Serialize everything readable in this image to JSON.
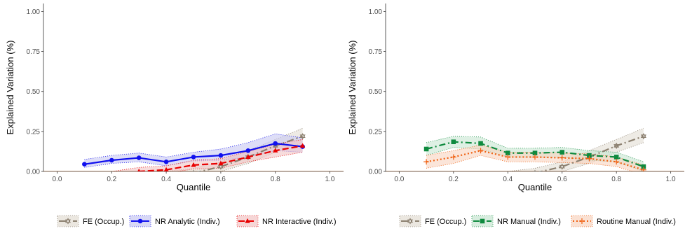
{
  "chart_data": [
    {
      "type": "line",
      "xlabel": "Quantile",
      "ylabel": "Explained Variation (%)",
      "xlim": [
        -0.05,
        1.05
      ],
      "ylim": [
        0,
        1.05
      ],
      "x_ticks": [
        "0.0",
        "0.2",
        "0.4",
        "0.6",
        "0.8",
        "1.0"
      ],
      "y_ticks": [
        "0.00",
        "0.25",
        "0.50",
        "0.75",
        "1.00"
      ],
      "grid": false,
      "reference_line": {
        "y": 0,
        "color": "#8B4513"
      },
      "legend_position": "bottom",
      "series": [
        {
          "name": "FE (Occup.)",
          "color": "#8c8070",
          "fill": "#e3ddd3",
          "dash": "10,4,2,4",
          "marker": "star",
          "x": [
            0.4,
            0.5,
            0.6,
            0.7,
            0.8,
            0.9
          ],
          "values": [
            -0.03,
            -0.01,
            0.03,
            0.09,
            0.16,
            0.22
          ],
          "lower": [
            -0.06,
            -0.04,
            0.0,
            0.05,
            0.12,
            0.18
          ],
          "upper": [
            0.0,
            0.02,
            0.06,
            0.13,
            0.2,
            0.27
          ]
        },
        {
          "name": "NR Analytic (Indiv.)",
          "color": "#1010ee",
          "fill": "#c8c8f2",
          "dash": "",
          "marker": "circle",
          "x": [
            0.1,
            0.2,
            0.3,
            0.4,
            0.5,
            0.6,
            0.7,
            0.8,
            0.9
          ],
          "values": [
            0.045,
            0.07,
            0.085,
            0.06,
            0.09,
            0.1,
            0.13,
            0.175,
            0.155
          ],
          "lower": [
            0.025,
            0.05,
            0.06,
            0.035,
            0.065,
            0.07,
            0.09,
            0.13,
            0.12
          ],
          "upper": [
            0.075,
            0.1,
            0.115,
            0.09,
            0.12,
            0.14,
            0.18,
            0.235,
            0.21
          ]
        },
        {
          "name": "NR Interactive (Indiv.)",
          "color": "#e80000",
          "fill": "#f2c4c4",
          "dash": "9,4",
          "marker": "triangle",
          "x": [
            0.1,
            0.2,
            0.3,
            0.4,
            0.5,
            0.6,
            0.7,
            0.8,
            0.9
          ],
          "values": [
            -0.03,
            -0.03,
            0.0,
            0.01,
            0.04,
            0.05,
            0.09,
            0.13,
            0.16
          ],
          "lower": [
            -0.05,
            -0.05,
            -0.02,
            -0.01,
            0.015,
            0.02,
            0.06,
            0.09,
            0.12
          ],
          "upper": [
            -0.005,
            0.0,
            0.025,
            0.035,
            0.07,
            0.08,
            0.125,
            0.17,
            0.2
          ]
        }
      ]
    },
    {
      "type": "line",
      "xlabel": "Quantile",
      "ylabel": "Explained Variation (%)",
      "xlim": [
        -0.05,
        1.05
      ],
      "ylim": [
        0,
        1.05
      ],
      "x_ticks": [
        "0.0",
        "0.2",
        "0.4",
        "0.6",
        "0.8",
        "1.0"
      ],
      "y_ticks": [
        "0.00",
        "0.25",
        "0.50",
        "0.75",
        "1.00"
      ],
      "grid": false,
      "reference_line": {
        "y": 0,
        "color": "#8B4513"
      },
      "legend_position": "bottom",
      "series": [
        {
          "name": "FE (Occup.)",
          "color": "#8c8070",
          "fill": "#e3ddd3",
          "dash": "10,4,2,4",
          "marker": "star",
          "x": [
            0.4,
            0.5,
            0.6,
            0.7,
            0.8,
            0.9
          ],
          "values": [
            -0.03,
            -0.01,
            0.03,
            0.09,
            0.16,
            0.22
          ],
          "lower": [
            -0.06,
            -0.04,
            0.0,
            0.05,
            0.12,
            0.18
          ],
          "upper": [
            0.0,
            0.02,
            0.06,
            0.13,
            0.2,
            0.27
          ]
        },
        {
          "name": "NR Manual (Indiv.)",
          "color": "#0e8a3e",
          "fill": "#c8e6d2",
          "dash": "9,4,2,4",
          "marker": "square",
          "x": [
            0.1,
            0.2,
            0.3,
            0.4,
            0.5,
            0.6,
            0.7,
            0.8,
            0.9
          ],
          "values": [
            0.14,
            0.185,
            0.175,
            0.115,
            0.115,
            0.12,
            0.1,
            0.09,
            0.03
          ],
          "lower": [
            0.1,
            0.15,
            0.14,
            0.09,
            0.09,
            0.09,
            0.07,
            0.06,
            0.0
          ],
          "upper": [
            0.18,
            0.22,
            0.215,
            0.145,
            0.145,
            0.15,
            0.13,
            0.12,
            0.06
          ]
        },
        {
          "name": "Routine Manual (Indiv.)",
          "color": "#f06010",
          "fill": "#f8d4c0",
          "dash": "2,3",
          "marker": "plus",
          "x": [
            0.1,
            0.2,
            0.3,
            0.4,
            0.5,
            0.6,
            0.7,
            0.8,
            0.9
          ],
          "values": [
            0.06,
            0.09,
            0.13,
            0.09,
            0.09,
            0.085,
            0.08,
            0.06,
            0.01
          ],
          "lower": [
            0.02,
            0.05,
            0.1,
            0.06,
            0.06,
            0.055,
            0.05,
            0.03,
            -0.02
          ],
          "upper": [
            0.1,
            0.13,
            0.165,
            0.12,
            0.12,
            0.115,
            0.11,
            0.09,
            0.04
          ]
        }
      ]
    }
  ]
}
